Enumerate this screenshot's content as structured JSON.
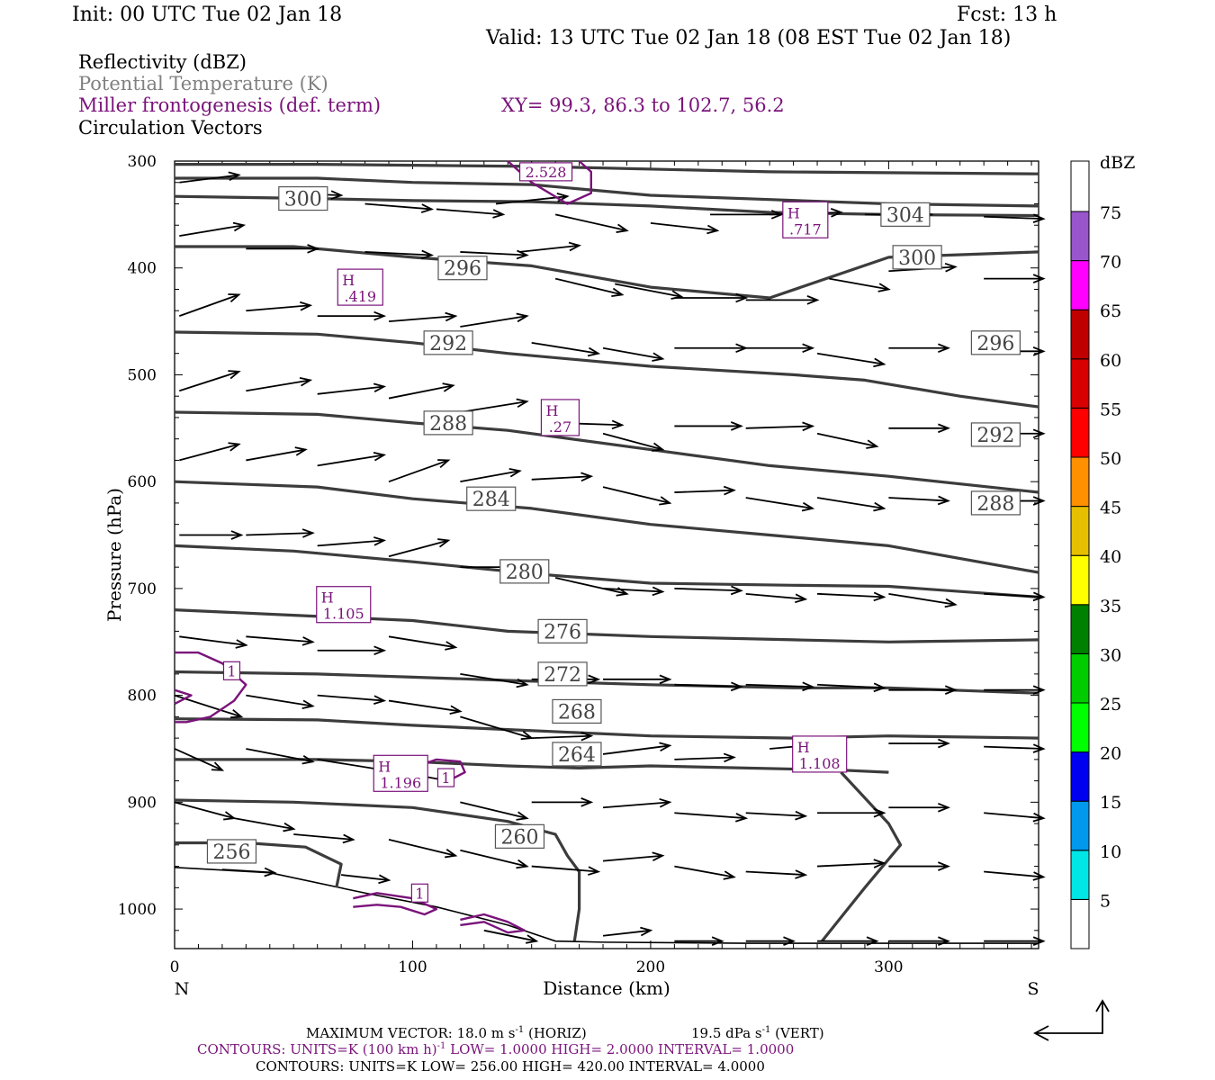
{
  "header": {
    "init": "Init: 00 UTC Tue 02 Jan 18",
    "fcst": "Fcst:   13 h",
    "valid": "Valid: 13 UTC Tue 02 Jan 18 (08 EST Tue 02 Jan 18)"
  },
  "fields": {
    "reflectivity": "Reflectivity (dBZ)",
    "theta": "Potential Temperature (K)",
    "frontogenesis": "Miller frontogenesis (def. term)",
    "vectors": "Circulation Vectors",
    "xy": "XY=  99.3, 86.3 to 102.7, 56.2"
  },
  "colors": {
    "theta_line": "#3c3c3c",
    "fronto_line": "#7a137a",
    "label_fronto": "#7a137a",
    "label_theta": "#808080"
  },
  "chart_data": {
    "type": "contour",
    "xlabel": "Distance (km)",
    "ylabel": "Pressure (hPa)",
    "x_range": [
      0,
      363
    ],
    "y_range": [
      300,
      1037
    ],
    "y_log": false,
    "x_ticks": [
      0,
      100,
      200,
      300
    ],
    "x_ticklabels": [
      "0",
      "100",
      "200",
      "300"
    ],
    "y_ticks": [
      300,
      400,
      500,
      600,
      700,
      800,
      900,
      1000
    ],
    "y_ticklabels": [
      "300",
      "400",
      "500",
      "600",
      "700",
      "800",
      "900",
      "1000"
    ],
    "x_end_labels": {
      "left": "N",
      "right": "S"
    },
    "theta_contours": [
      {
        "level": "256",
        "label_at": [
          24,
          946
        ]
      },
      {
        "level": "260",
        "label_at": [
          145,
          932
        ]
      },
      {
        "level": "264",
        "label_at": [
          169,
          855
        ]
      },
      {
        "level": "268",
        "label_at": [
          169,
          815
        ]
      },
      {
        "level": "272",
        "label_at": [
          163,
          780
        ]
      },
      {
        "level": "276",
        "label_at": [
          163,
          740
        ]
      },
      {
        "level": "280",
        "label_at": [
          147,
          684
        ]
      },
      {
        "level": "284",
        "label_at": [
          133,
          616
        ]
      },
      {
        "level": "288",
        "label_at": [
          115,
          545
        ]
      },
      {
        "level": "288",
        "label_at": [
          345,
          620
        ]
      },
      {
        "level": "292",
        "label_at": [
          115,
          470
        ]
      },
      {
        "level": "292",
        "label_at": [
          345,
          556
        ]
      },
      {
        "level": "296",
        "label_at": [
          121,
          400
        ]
      },
      {
        "level": "296",
        "label_at": [
          345,
          470
        ]
      },
      {
        "level": "300",
        "label_at": [
          54,
          335
        ]
      },
      {
        "level": "300",
        "label_at": [
          312,
          390
        ]
      },
      {
        "level": "304",
        "label_at": [
          307,
          350
        ]
      }
    ],
    "fronto_labels": [
      {
        "text": "2.528",
        "at": [
          156,
          310
        ]
      },
      {
        "text": "1",
        "at": [
          24,
          777
        ]
      },
      {
        "text": "1",
        "at": [
          114,
          877
        ]
      },
      {
        "text": "1",
        "at": [
          103,
          985
        ]
      }
    ],
    "fronto_maxima": [
      {
        "label": "H",
        "value": ".419",
        "at": [
          78,
          418
        ]
      },
      {
        "label": "H",
        "value": ".717",
        "at": [
          265,
          355
        ]
      },
      {
        "label": "H",
        "value": ".27",
        "at": [
          162,
          540
        ]
      },
      {
        "label": "H",
        "value": "1.105",
        "at": [
          71,
          715
        ]
      },
      {
        "label": "H",
        "value": "1.196",
        "at": [
          95,
          873
        ]
      },
      {
        "label": "H",
        "value": "1.108",
        "at": [
          271,
          855
        ]
      }
    ],
    "colorbar": {
      "title": "dBZ",
      "levels": [
        "5",
        "10",
        "15",
        "20",
        "25",
        "30",
        "35",
        "40",
        "45",
        "50",
        "55",
        "60",
        "65",
        "70",
        "75"
      ],
      "colors": [
        "#ffffff",
        "#00e6e6",
        "#0099ee",
        "#0000f0",
        "#00ff00",
        "#00cc00",
        "#008000",
        "#ffff00",
        "#e6c000",
        "#ff9000",
        "#ff0000",
        "#d80000",
        "#c00000",
        "#ff00ff",
        "#9955cc",
        "#ffffff"
      ]
    }
  },
  "footer": {
    "max_vector": "MAXIMUM VECTOR:  18.0 m s",
    "max_vector_exp": "-1",
    "max_vector_horiz": " (HORIZ)",
    "max_vector_vert": "19.5 dPa s",
    "max_vector_vert_exp": "-1",
    "max_vector_vert_tail": " (VERT)",
    "contours1_a": "CONTOURS:  UNITS=K (100 km h)",
    "contours1_exp": "-1",
    "contours1_b": "  LOW=   1.0000      HIGH=   2.0000      INTERVAL=    1.0000",
    "contours2": "CONTOURS:  UNITS=K   LOW=   256.00        HIGH=   420.00        INTERVAL=     4.0000"
  }
}
